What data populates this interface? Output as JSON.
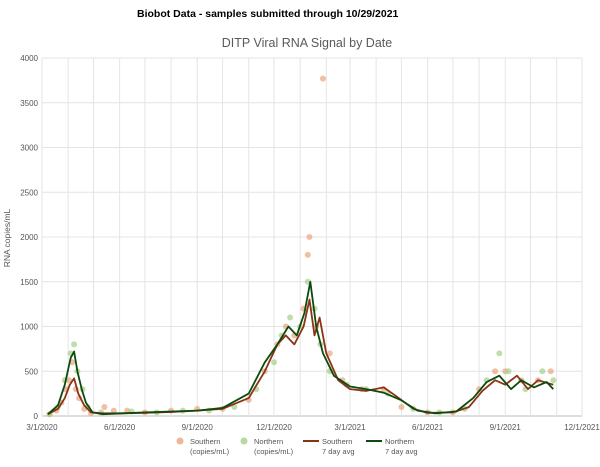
{
  "header": {
    "text": "Biobot Data - samples submitted through 10/29/2021"
  },
  "chart_data": {
    "type": "scatter",
    "title": "DITP Viral RNA Signal by Date",
    "ylabel": "RNA copies/mL",
    "xlabel": "",
    "ylim": [
      0,
      4000
    ],
    "yticks": [
      0,
      500,
      1000,
      1500,
      2000,
      2500,
      3000,
      3500,
      4000
    ],
    "xlim": [
      "2020-03-01",
      "2021-12-01"
    ],
    "xticks": [
      "3/1/2020",
      "6/1/2020",
      "9/1/2020",
      "12/1/2020",
      "3/1/2021",
      "6/1/2021",
      "9/1/2021",
      "12/1/2021"
    ],
    "grid": true,
    "legend_position": "bottom",
    "series": [
      {
        "name": "Southern (copies/mL)",
        "legend_lines": [
          "Southern",
          "(copies/mL)"
        ],
        "kind": "points",
        "color": "#e9a57f",
        "points": [
          [
            "2020-03-10",
            20
          ],
          [
            "2020-03-18",
            60
          ],
          [
            "2020-03-24",
            150
          ],
          [
            "2020-03-29",
            300
          ],
          [
            "2020-04-02",
            400
          ],
          [
            "2020-04-06",
            600
          ],
          [
            "2020-04-10",
            300
          ],
          [
            "2020-04-14",
            200
          ],
          [
            "2020-04-20",
            80
          ],
          [
            "2020-04-28",
            30
          ],
          [
            "2020-05-14",
            100
          ],
          [
            "2020-05-25",
            60
          ],
          [
            "2020-06-10",
            60
          ],
          [
            "2020-07-01",
            40
          ],
          [
            "2020-08-01",
            60
          ],
          [
            "2020-09-01",
            80
          ],
          [
            "2020-10-01",
            80
          ],
          [
            "2020-11-01",
            180
          ],
          [
            "2020-11-20",
            500
          ],
          [
            "2020-12-05",
            800
          ],
          [
            "2020-12-15",
            1000
          ],
          [
            "2020-12-25",
            900
          ],
          [
            "2021-01-05",
            1200
          ],
          [
            "2021-01-10",
            1800
          ],
          [
            "2021-01-12",
            2000
          ],
          [
            "2021-01-20",
            1000
          ],
          [
            "2021-01-28",
            3770
          ],
          [
            "2021-02-05",
            700
          ],
          [
            "2021-02-20",
            400
          ],
          [
            "2021-03-15",
            300
          ],
          [
            "2021-04-10",
            300
          ],
          [
            "2021-05-01",
            100
          ],
          [
            "2021-06-01",
            40
          ],
          [
            "2021-07-01",
            40
          ],
          [
            "2021-08-01",
            300
          ],
          [
            "2021-08-20",
            500
          ],
          [
            "2021-09-01",
            500
          ],
          [
            "2021-09-20",
            400
          ],
          [
            "2021-10-10",
            400
          ],
          [
            "2021-10-25",
            500
          ]
        ]
      },
      {
        "name": "Northern (copies/mL)",
        "legend_lines": [
          "Northern",
          "(copies/mL)"
        ],
        "kind": "points",
        "color": "#a5cf8a",
        "points": [
          [
            "2020-03-10",
            20
          ],
          [
            "2020-03-20",
            100
          ],
          [
            "2020-03-28",
            400
          ],
          [
            "2020-04-04",
            700
          ],
          [
            "2020-04-08",
            800
          ],
          [
            "2020-04-12",
            500
          ],
          [
            "2020-04-18",
            300
          ],
          [
            "2020-04-24",
            100
          ],
          [
            "2020-05-10",
            40
          ],
          [
            "2020-06-15",
            50
          ],
          [
            "2020-07-15",
            40
          ],
          [
            "2020-08-15",
            60
          ],
          [
            "2020-09-15",
            60
          ],
          [
            "2020-10-15",
            100
          ],
          [
            "2020-11-10",
            300
          ],
          [
            "2020-12-01",
            600
          ],
          [
            "2020-12-10",
            900
          ],
          [
            "2020-12-20",
            1100
          ],
          [
            "2021-01-01",
            1000
          ],
          [
            "2021-01-10",
            1500
          ],
          [
            "2021-01-18",
            1200
          ],
          [
            "2021-01-25",
            800
          ],
          [
            "2021-02-05",
            500
          ],
          [
            "2021-02-25",
            350
          ],
          [
            "2021-03-20",
            300
          ],
          [
            "2021-04-15",
            250
          ],
          [
            "2021-05-15",
            80
          ],
          [
            "2021-06-15",
            40
          ],
          [
            "2021-07-15",
            80
          ],
          [
            "2021-08-10",
            400
          ],
          [
            "2021-08-25",
            700
          ],
          [
            "2021-09-05",
            500
          ],
          [
            "2021-09-25",
            300
          ],
          [
            "2021-10-15",
            500
          ],
          [
            "2021-10-28",
            400
          ]
        ]
      },
      {
        "name": "Southern 7 day avg",
        "legend_lines": [
          "Southern",
          "7 day avg"
        ],
        "kind": "line",
        "color": "#8a3415",
        "points": [
          [
            "2020-03-08",
            20
          ],
          [
            "2020-03-20",
            80
          ],
          [
            "2020-03-28",
            200
          ],
          [
            "2020-04-03",
            350
          ],
          [
            "2020-04-08",
            420
          ],
          [
            "2020-04-13",
            250
          ],
          [
            "2020-04-20",
            120
          ],
          [
            "2020-04-28",
            40
          ],
          [
            "2020-05-12",
            30
          ],
          [
            "2020-06-01",
            30
          ],
          [
            "2020-07-01",
            35
          ],
          [
            "2020-08-01",
            45
          ],
          [
            "2020-09-01",
            60
          ],
          [
            "2020-10-01",
            80
          ],
          [
            "2020-11-01",
            200
          ],
          [
            "2020-11-20",
            500
          ],
          [
            "2020-12-05",
            800
          ],
          [
            "2020-12-15",
            900
          ],
          [
            "2020-12-25",
            800
          ],
          [
            "2021-01-05",
            1000
          ],
          [
            "2021-01-12",
            1300
          ],
          [
            "2021-01-18",
            900
          ],
          [
            "2021-01-24",
            1100
          ],
          [
            "2021-02-01",
            700
          ],
          [
            "2021-02-15",
            400
          ],
          [
            "2021-03-01",
            300
          ],
          [
            "2021-03-20",
            280
          ],
          [
            "2021-04-10",
            320
          ],
          [
            "2021-04-25",
            220
          ],
          [
            "2021-05-15",
            80
          ],
          [
            "2021-06-01",
            35
          ],
          [
            "2021-07-01",
            40
          ],
          [
            "2021-07-20",
            100
          ],
          [
            "2021-08-05",
            280
          ],
          [
            "2021-08-20",
            400
          ],
          [
            "2021-09-01",
            350
          ],
          [
            "2021-09-15",
            450
          ],
          [
            "2021-09-28",
            300
          ],
          [
            "2021-10-10",
            400
          ],
          [
            "2021-10-28",
            350
          ]
        ]
      },
      {
        "name": "Northern 7 day avg",
        "legend_lines": [
          "Northern",
          "7 day avg"
        ],
        "kind": "line",
        "color": "#0d4a0d",
        "points": [
          [
            "2020-03-08",
            20
          ],
          [
            "2020-03-20",
            120
          ],
          [
            "2020-03-28",
            350
          ],
          [
            "2020-04-04",
            650
          ],
          [
            "2020-04-08",
            720
          ],
          [
            "2020-04-12",
            500
          ],
          [
            "2020-04-17",
            300
          ],
          [
            "2020-04-22",
            150
          ],
          [
            "2020-04-30",
            40
          ],
          [
            "2020-05-12",
            20
          ],
          [
            "2020-06-05",
            30
          ],
          [
            "2020-07-01",
            40
          ],
          [
            "2020-08-01",
            50
          ],
          [
            "2020-09-01",
            60
          ],
          [
            "2020-10-01",
            90
          ],
          [
            "2020-11-01",
            250
          ],
          [
            "2020-11-20",
            600
          ],
          [
            "2020-12-05",
            800
          ],
          [
            "2020-12-18",
            1000
          ],
          [
            "2020-12-28",
            900
          ],
          [
            "2021-01-06",
            1150
          ],
          [
            "2021-01-13",
            1500
          ],
          [
            "2021-01-20",
            1000
          ],
          [
            "2021-01-28",
            700
          ],
          [
            "2021-02-10",
            450
          ],
          [
            "2021-03-01",
            330
          ],
          [
            "2021-03-20",
            300
          ],
          [
            "2021-04-10",
            260
          ],
          [
            "2021-04-30",
            180
          ],
          [
            "2021-05-20",
            60
          ],
          [
            "2021-06-10",
            30
          ],
          [
            "2021-07-05",
            50
          ],
          [
            "2021-07-25",
            200
          ],
          [
            "2021-08-10",
            380
          ],
          [
            "2021-08-25",
            450
          ],
          [
            "2021-09-08",
            300
          ],
          [
            "2021-09-20",
            400
          ],
          [
            "2021-10-05",
            320
          ],
          [
            "2021-10-20",
            380
          ],
          [
            "2021-10-28",
            300
          ]
        ]
      }
    ]
  }
}
